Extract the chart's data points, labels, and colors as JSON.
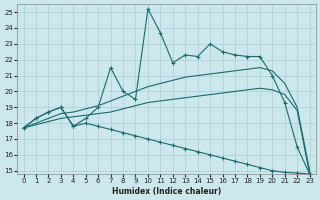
{
  "xlabel": "Humidex (Indice chaleur)",
  "xlim": [
    -0.5,
    23.5
  ],
  "ylim": [
    14.8,
    25.5
  ],
  "xticks": [
    0,
    1,
    2,
    3,
    4,
    5,
    6,
    7,
    8,
    9,
    10,
    11,
    12,
    13,
    14,
    15,
    16,
    17,
    18,
    19,
    20,
    21,
    22,
    23
  ],
  "yticks": [
    15,
    16,
    17,
    18,
    19,
    20,
    21,
    22,
    23,
    24,
    25
  ],
  "bg_color": "#cce8ec",
  "line_color": "#1a6b6b",
  "grid_color": "#aacdd4",
  "series_zigzag_x": [
    0,
    1,
    2,
    3,
    4,
    5,
    6,
    7,
    8,
    9,
    10,
    11,
    12,
    13,
    14,
    15,
    16,
    17,
    18,
    19,
    20,
    21,
    22,
    23
  ],
  "series_zigzag_y": [
    17.7,
    18.3,
    18.7,
    19.0,
    17.8,
    18.3,
    19.0,
    21.5,
    20.0,
    19.5,
    25.2,
    23.7,
    21.8,
    22.3,
    22.2,
    23.0,
    22.5,
    22.3,
    22.2,
    22.2,
    21.0,
    19.3,
    16.5,
    14.8
  ],
  "series_upper_x": [
    0,
    1,
    2,
    3,
    4,
    5,
    6,
    7,
    8,
    9,
    10,
    11,
    12,
    13,
    14,
    15,
    16,
    17,
    18,
    19,
    20,
    21,
    22,
    23
  ],
  "series_upper_y": [
    17.7,
    18.0,
    18.3,
    18.6,
    18.7,
    18.9,
    19.1,
    19.4,
    19.7,
    20.0,
    20.3,
    20.5,
    20.7,
    20.9,
    21.0,
    21.1,
    21.2,
    21.3,
    21.4,
    21.5,
    21.3,
    20.5,
    19.0,
    15.0
  ],
  "series_lower_x": [
    0,
    1,
    2,
    3,
    4,
    5,
    6,
    7,
    8,
    9,
    10,
    11,
    12,
    13,
    14,
    15,
    16,
    17,
    18,
    19,
    20,
    21,
    22,
    23
  ],
  "series_lower_y": [
    17.7,
    17.9,
    18.1,
    18.3,
    18.4,
    18.5,
    18.6,
    18.7,
    18.9,
    19.1,
    19.3,
    19.4,
    19.5,
    19.6,
    19.7,
    19.8,
    19.9,
    20.0,
    20.1,
    20.2,
    20.1,
    19.8,
    18.8,
    14.8
  ],
  "series_diag_x": [
    0,
    1,
    2,
    3,
    4,
    5,
    6,
    7,
    8,
    9,
    10,
    11,
    12,
    13,
    14,
    15,
    16,
    17,
    18,
    19,
    20,
    21,
    22,
    23
  ],
  "series_diag_y": [
    17.7,
    18.3,
    18.7,
    19.0,
    17.8,
    18.0,
    17.8,
    17.6,
    17.4,
    17.2,
    17.0,
    16.8,
    16.6,
    16.4,
    16.2,
    16.0,
    15.8,
    15.6,
    15.4,
    15.2,
    15.0,
    14.9,
    14.85,
    14.8
  ]
}
